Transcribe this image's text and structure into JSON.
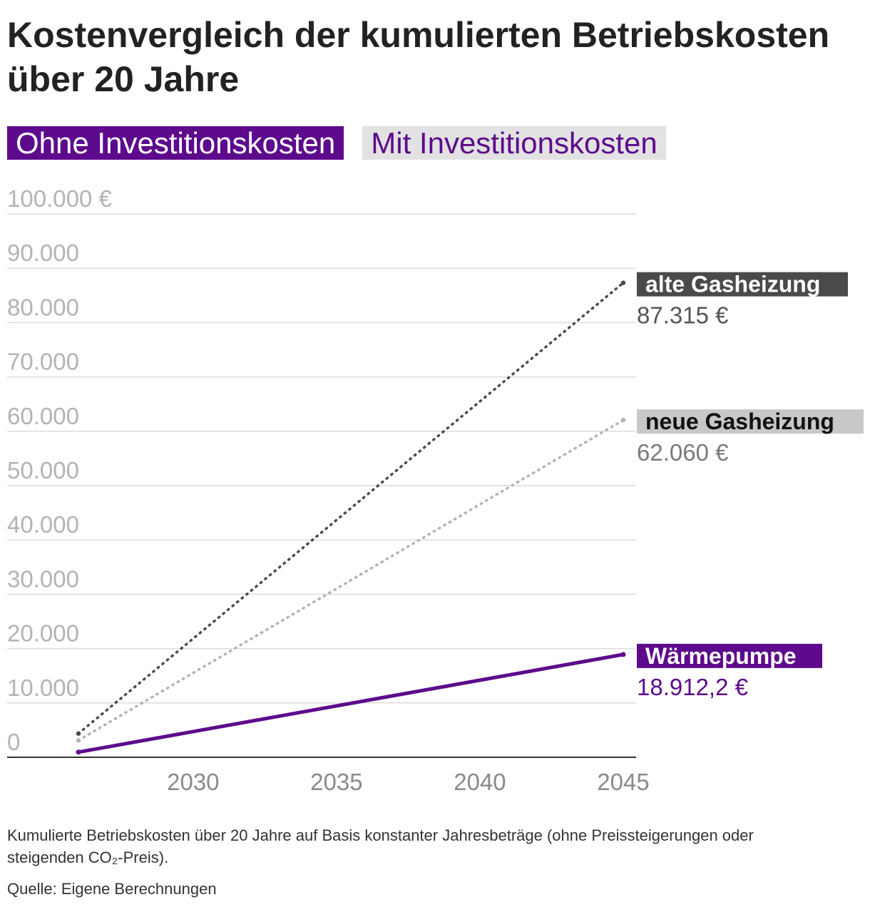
{
  "title": "Kostenvergleich der kumulierten Betriebskosten über 20 Jahre",
  "toggle": {
    "active_label": "Ohne Investitionskosten",
    "inactive_label": "Mit Investitionskosten"
  },
  "colors": {
    "accent": "#5d0a8c",
    "alte_gasheizung": "#4a4a4a",
    "neue_gasheizung": "#b3b3b3",
    "waermepumpe": "#5d0a8c",
    "gridline": "#dcdcdc",
    "tick_text": "#b3b3b3",
    "x_tick_text": "#8a8a8a",
    "axis": "#333333"
  },
  "chart_data": {
    "type": "line",
    "title": "Kostenvergleich der kumulierten Betriebskosten über 20 Jahre",
    "xlim": [
      2026,
      2045
    ],
    "ylim": [
      0,
      100000
    ],
    "x_ticks": [
      2030,
      2035,
      2040,
      2045
    ],
    "x_tick_labels": [
      "2030",
      "2035",
      "2040",
      "2045"
    ],
    "y_ticks": [
      0,
      10000,
      20000,
      30000,
      40000,
      50000,
      60000,
      70000,
      80000,
      90000,
      100000
    ],
    "y_tick_labels": [
      "0",
      "10.000",
      "20.000",
      "30.000",
      "40.000",
      "50.000",
      "60.000",
      "70.000",
      "80.000",
      "90.000",
      "100.000 €"
    ],
    "grid": true,
    "series": [
      {
        "name": "alte Gasheizung",
        "style": "dotted",
        "x": [
          2026,
          2045
        ],
        "values": [
          4366,
          87315
        ],
        "end_label": "87.315 €"
      },
      {
        "name": "neue Gasheizung",
        "style": "dotted",
        "x": [
          2026,
          2045
        ],
        "values": [
          3103,
          62060
        ],
        "end_label": "62.060 €"
      },
      {
        "name": "Wärmepumpe",
        "style": "solid",
        "x": [
          2026,
          2045
        ],
        "values": [
          946,
          18912.2
        ],
        "end_label": "18.912,2 €"
      }
    ]
  },
  "footnote": "Kumulierte Betriebskosten über 20 Jahre auf Basis konstanter Jahresbeträge (ohne Preissteigerungen oder steigenden CO₂-Preis).",
  "source": "Quelle: Eigene Berechnungen"
}
